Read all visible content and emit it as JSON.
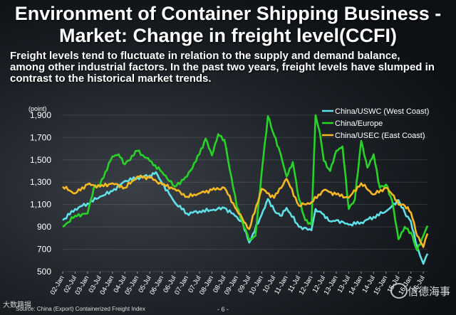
{
  "slide": {
    "title": "Environment of Container Shipping Business - Market: Change in freight level(CCFI)",
    "body": "Freight levels tend to fluctuate in relation to the supply and demand balance, among other industrial factors.  In the past two years, freight levels have slumped in contrast to the historical market trends.",
    "source": "Source: China (Export) Containerized Freight Index",
    "page_number": "- 6 -",
    "watermark_left": "大数籍揚",
    "watermark_right": "信德海事"
  },
  "colors": {
    "uswc": "#5fe0e8",
    "europe": "#27d327",
    "usec": "#f6b820",
    "text": "#ffffff"
  },
  "chart_data": {
    "type": "line",
    "ylabel": "(point)",
    "ylim": [
      500,
      1950
    ],
    "yticks": [
      500,
      700,
      900,
      1100,
      1300,
      1500,
      1700,
      1900
    ],
    "ytick_labels": [
      "500",
      "700",
      "900",
      "1,100",
      "1,300",
      "1,500",
      "1,700",
      "1,900"
    ],
    "x_range": [
      "2002-01",
      "2016-09"
    ],
    "xticks": [
      "02-Jan",
      "02-Jul",
      "03-Jan",
      "03-Jul",
      "04-Jan",
      "04-Jul",
      "05-Jan",
      "05-Jul",
      "06-Jan",
      "06-Jul",
      "07-Jan",
      "07-Jul",
      "08-Jan",
      "08-Jul",
      "09-Jan",
      "09-Jul",
      "10-Jan",
      "10-Jul",
      "11-Jan",
      "11-Jul",
      "12-Jan",
      "12-Jul",
      "13-Jan",
      "13-Jul",
      "14-Jan",
      "14-Jul",
      "15-Jan",
      "15-Jul",
      "16-Jan",
      "16-Jul"
    ],
    "legend": "top-right",
    "series": [
      {
        "name": "China/USWC(West Coast)",
        "label_parts": [
          "China/USWC",
          "(West Coast)"
        ],
        "color_key": "uswc",
        "x": [
          "2002-01",
          "2002-07",
          "2003-01",
          "2003-07",
          "2004-01",
          "2004-07",
          "2005-01",
          "2005-07",
          "2005-10",
          "2006-01",
          "2006-07",
          "2007-01",
          "2007-07",
          "2008-01",
          "2008-07",
          "2009-01",
          "2009-04",
          "2009-07",
          "2010-01",
          "2010-04",
          "2010-07",
          "2010-10",
          "2011-01",
          "2011-07",
          "2012-01",
          "2012-03",
          "2012-07",
          "2012-10",
          "2013-01",
          "2013-07",
          "2014-01",
          "2014-07",
          "2015-01",
          "2015-04",
          "2015-07",
          "2015-10",
          "2016-01",
          "2016-04",
          "2016-07",
          "2016-09"
        ],
        "y": [
          960,
          1060,
          1110,
          1170,
          1220,
          1310,
          1340,
          1360,
          1390,
          1290,
          1120,
          1020,
          1040,
          1050,
          1070,
          990,
          930,
          760,
          1010,
          1150,
          1050,
          1000,
          1070,
          900,
          870,
          1060,
          1010,
          950,
          960,
          920,
          940,
          990,
          1040,
          1090,
          1140,
          1030,
          950,
          720,
          570,
          660
        ]
      },
      {
        "name": "China/Europe",
        "label_parts": [
          "China/Europe"
        ],
        "color_key": "europe",
        "x": [
          "2002-01",
          "2002-07",
          "2003-01",
          "2003-04",
          "2003-07",
          "2004-01",
          "2004-04",
          "2004-07",
          "2005-01",
          "2005-07",
          "2006-01",
          "2006-07",
          "2007-01",
          "2007-07",
          "2007-10",
          "2008-01",
          "2008-04",
          "2008-07",
          "2009-01",
          "2009-07",
          "2009-10",
          "2010-01",
          "2010-04",
          "2010-07",
          "2010-10",
          "2011-01",
          "2011-04",
          "2011-07",
          "2011-10",
          "2012-01",
          "2012-03",
          "2012-05",
          "2012-07",
          "2012-10",
          "2013-01",
          "2013-04",
          "2013-07",
          "2013-10",
          "2014-01",
          "2014-04",
          "2014-07",
          "2014-10",
          "2015-01",
          "2015-04",
          "2015-07",
          "2015-10",
          "2016-01",
          "2016-04",
          "2016-07",
          "2016-09"
        ],
        "y": [
          900,
          1000,
          1020,
          1250,
          1280,
          1530,
          1550,
          1460,
          1580,
          1490,
          1390,
          1260,
          1350,
          1550,
          1690,
          1540,
          1730,
          1680,
          1080,
          780,
          820,
          1390,
          1890,
          1720,
          1560,
          1350,
          1480,
          1150,
          960,
          920,
          1900,
          1750,
          1490,
          1400,
          1580,
          1620,
          1060,
          1150,
          1670,
          1430,
          1550,
          1250,
          1280,
          1130,
          790,
          900,
          850,
          690,
          820,
          910
        ]
      },
      {
        "name": "China/USEC(East Coast)",
        "label_parts": [
          "China/USEC",
          "(East Coast)"
        ],
        "color_key": "usec",
        "x": [
          "2002-01",
          "2002-07",
          "2003-01",
          "2003-07",
          "2004-01",
          "2004-07",
          "2005-01",
          "2005-07",
          "2006-01",
          "2006-07",
          "2007-01",
          "2007-07",
          "2008-01",
          "2008-07",
          "2009-01",
          "2009-07",
          "2010-01",
          "2010-07",
          "2011-01",
          "2011-07",
          "2012-01",
          "2012-07",
          "2013-01",
          "2013-07",
          "2014-01",
          "2014-07",
          "2015-01",
          "2015-04",
          "2015-07",
          "2015-10",
          "2016-01",
          "2016-04",
          "2016-07",
          "2016-09"
        ],
        "y": [
          1260,
          1200,
          1280,
          1260,
          1290,
          1250,
          1350,
          1340,
          1280,
          1240,
          1170,
          1200,
          1230,
          1250,
          1050,
          880,
          1240,
          1160,
          1330,
          1090,
          1120,
          1230,
          1190,
          1160,
          1290,
          1190,
          1250,
          1190,
          1100,
          1090,
          1030,
          820,
          720,
          840
        ]
      }
    ]
  }
}
